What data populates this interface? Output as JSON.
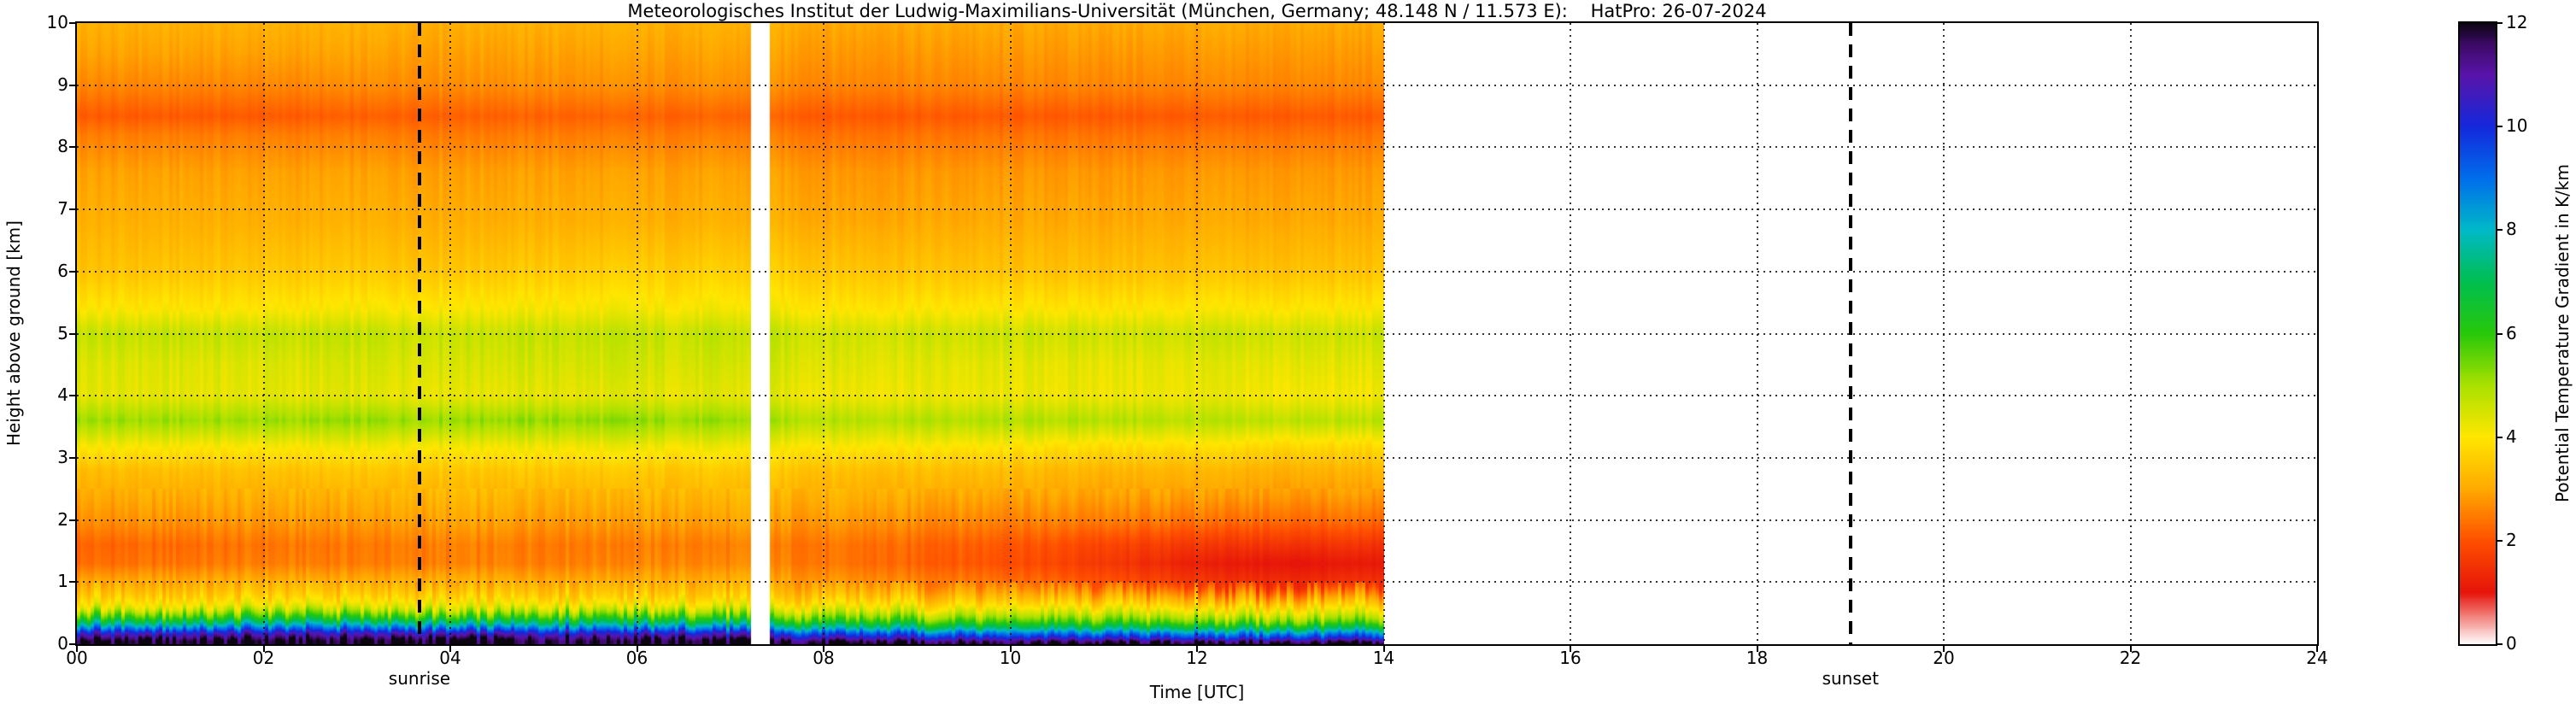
{
  "chart_data": {
    "type": "heatmap",
    "title": "Meteorologisches Institut der Ludwig-Maximilians-Universität (München, Germany; 48.148 N / 11.573 E):    HatPro: 26-07-2024",
    "xlabel": "Time [UTC]",
    "ylabel": "Height above ground [km]",
    "x_range_hours_utc": [
      0,
      24
    ],
    "y_range_km": [
      0,
      10
    ],
    "x_tick_labels": [
      "00",
      "02",
      "04",
      "06",
      "08",
      "10",
      "12",
      "14",
      "16",
      "18",
      "20",
      "22",
      "24"
    ],
    "y_tick_labels": [
      "0",
      "1",
      "2",
      "3",
      "4",
      "5",
      "6",
      "7",
      "8",
      "9",
      "10"
    ],
    "grid": "dotted",
    "colorbar": {
      "label": "Potential Temperature Gradient in K/km",
      "range": [
        0,
        12
      ],
      "ticks": [
        "0",
        "2",
        "4",
        "6",
        "8",
        "10",
        "12"
      ]
    },
    "data_time_extent_utc": [
      0,
      14
    ],
    "missing_data_gap_utc": [
      7.22,
      7.42
    ],
    "annotations": {
      "sunrise": {
        "label": "sunrise",
        "time_utc": 3.67
      },
      "sunset": {
        "label": "sunset",
        "time_utc": 19.0
      }
    },
    "times_utc": [
      0,
      2,
      4,
      6,
      7.2,
      7.45,
      8,
      10,
      11,
      12,
      13,
      14
    ],
    "heights_km": [
      0,
      0.05,
      0.1,
      0.18,
      0.25,
      0.35,
      0.45,
      0.6,
      0.8,
      1.0,
      1.3,
      1.6,
      2.0,
      2.4,
      2.8,
      3.2,
      3.6,
      4.0,
      4.5,
      5.0,
      5.4,
      6.0,
      6.8,
      7.6,
      8.2,
      8.5,
      9.0,
      9.5,
      10
    ],
    "values_K_per_km": [
      [
        12,
        12,
        11.4,
        10.4,
        9.0,
        7.2,
        5.8,
        4.2,
        3.5,
        3.0,
        2.3,
        2.2,
        2.7,
        3.0,
        3.3,
        4.1,
        5.1,
        4.3,
        4.4,
        4.7,
        4.0,
        3.4,
        3.1,
        2.9,
        2.5,
        2.1,
        2.6,
        2.9,
        3.1
      ],
      [
        12,
        12,
        11.5,
        10.5,
        9.1,
        7.3,
        5.8,
        4.3,
        3.5,
        3.1,
        2.5,
        2.4,
        2.8,
        3.1,
        3.4,
        4.1,
        5.1,
        4.3,
        4.4,
        4.7,
        4.0,
        3.5,
        3.1,
        2.9,
        2.5,
        2.1,
        2.6,
        2.9,
        3.1
      ],
      [
        12,
        12,
        11.6,
        10.6,
        9.2,
        7.4,
        5.9,
        4.4,
        3.6,
        3.1,
        2.5,
        2.5,
        2.9,
        3.2,
        3.5,
        4.2,
        5.2,
        4.3,
        4.5,
        4.7,
        4.1,
        3.5,
        3.1,
        2.9,
        2.5,
        2.2,
        2.7,
        2.9,
        3.1
      ],
      [
        12,
        12,
        11.5,
        10.4,
        9.0,
        7.2,
        5.8,
        4.3,
        3.5,
        3.1,
        2.6,
        2.5,
        2.9,
        3.2,
        3.5,
        4.2,
        5.2,
        4.3,
        4.5,
        4.7,
        4.1,
        3.6,
        3.1,
        2.9,
        2.5,
        2.2,
        2.7,
        2.9,
        3.1
      ],
      [
        12,
        12,
        11.4,
        10.3,
        8.9,
        7.1,
        5.7,
        4.3,
        3.5,
        3.1,
        2.6,
        2.5,
        2.9,
        3.2,
        3.5,
        4.2,
        5.1,
        4.3,
        4.5,
        4.7,
        4.1,
        3.6,
        3.1,
        2.9,
        2.5,
        2.2,
        2.7,
        2.9,
        3.1
      ],
      [
        12,
        11.8,
        11.0,
        9.8,
        8.4,
        6.7,
        5.4,
        4.2,
        3.4,
        3.0,
        2.6,
        2.5,
        2.9,
        3.2,
        3.5,
        4.1,
        5.0,
        4.3,
        4.5,
        4.7,
        4.1,
        3.6,
        3.1,
        2.9,
        2.5,
        2.2,
        2.7,
        2.9,
        3.1
      ],
      [
        12,
        11.6,
        10.6,
        9.3,
        7.9,
        6.3,
        5.2,
        4.1,
        3.3,
        2.8,
        2.4,
        2.4,
        2.8,
        3.1,
        3.4,
        4.1,
        4.9,
        4.2,
        4.4,
        4.6,
        4.0,
        3.5,
        3.0,
        2.8,
        2.4,
        2.1,
        2.6,
        2.8,
        3.0
      ],
      [
        12,
        11.5,
        10.3,
        8.9,
        7.5,
        6.0,
        5.0,
        4.0,
        3.1,
        2.4,
        2.0,
        2.1,
        2.6,
        3.0,
        3.3,
        4.0,
        4.9,
        4.2,
        4.3,
        4.6,
        4.0,
        3.4,
        3.0,
        2.8,
        2.4,
        2.1,
        2.6,
        2.8,
        3.0
      ],
      [
        12,
        11.4,
        10.1,
        8.7,
        7.3,
        5.8,
        4.9,
        3.9,
        2.9,
        2.0,
        1.6,
        1.8,
        2.5,
        2.9,
        3.2,
        3.9,
        4.9,
        4.2,
        4.3,
        4.6,
        4.0,
        3.4,
        3.0,
        2.8,
        2.4,
        2.1,
        2.6,
        2.8,
        3.0
      ],
      [
        12,
        11.4,
        10.0,
        8.6,
        7.2,
        5.7,
        4.8,
        3.8,
        2.7,
        1.6,
        1.2,
        1.6,
        2.4,
        2.9,
        3.2,
        3.9,
        4.8,
        4.2,
        4.3,
        4.6,
        4.0,
        3.4,
        3.0,
        2.8,
        2.4,
        2.1,
        2.6,
        2.8,
        3.0
      ],
      [
        12,
        11.3,
        9.9,
        8.5,
        7.1,
        5.6,
        4.7,
        3.8,
        2.6,
        1.4,
        1.0,
        1.5,
        2.3,
        2.8,
        3.1,
        3.8,
        4.8,
        4.1,
        4.3,
        4.6,
        4.0,
        3.4,
        3.0,
        2.8,
        2.4,
        2.1,
        2.6,
        2.8,
        3.0
      ],
      [
        12,
        11.3,
        9.9,
        8.5,
        7.1,
        5.6,
        4.7,
        3.8,
        2.7,
        1.5,
        1.1,
        1.5,
        2.3,
        2.8,
        3.2,
        3.8,
        4.8,
        4.1,
        4.3,
        4.6,
        4.0,
        3.4,
        3.0,
        2.8,
        2.4,
        2.1,
        2.6,
        2.8,
        3.0
      ]
    ],
    "colormap_stops": [
      [
        0,
        "#ffffff"
      ],
      [
        1,
        "#e6140a"
      ],
      [
        2,
        "#ff5000"
      ],
      [
        3,
        "#ffaa00"
      ],
      [
        4,
        "#ffe600"
      ],
      [
        5,
        "#aae100"
      ],
      [
        6,
        "#28c80a"
      ],
      [
        7,
        "#00be50"
      ],
      [
        8,
        "#00b9c8"
      ],
      [
        9,
        "#006eeb"
      ],
      [
        10,
        "#1428dc"
      ],
      [
        11,
        "#5a14aa"
      ],
      [
        11.6,
        "#3c0a64"
      ],
      [
        12,
        "#0a050f"
      ]
    ]
  }
}
